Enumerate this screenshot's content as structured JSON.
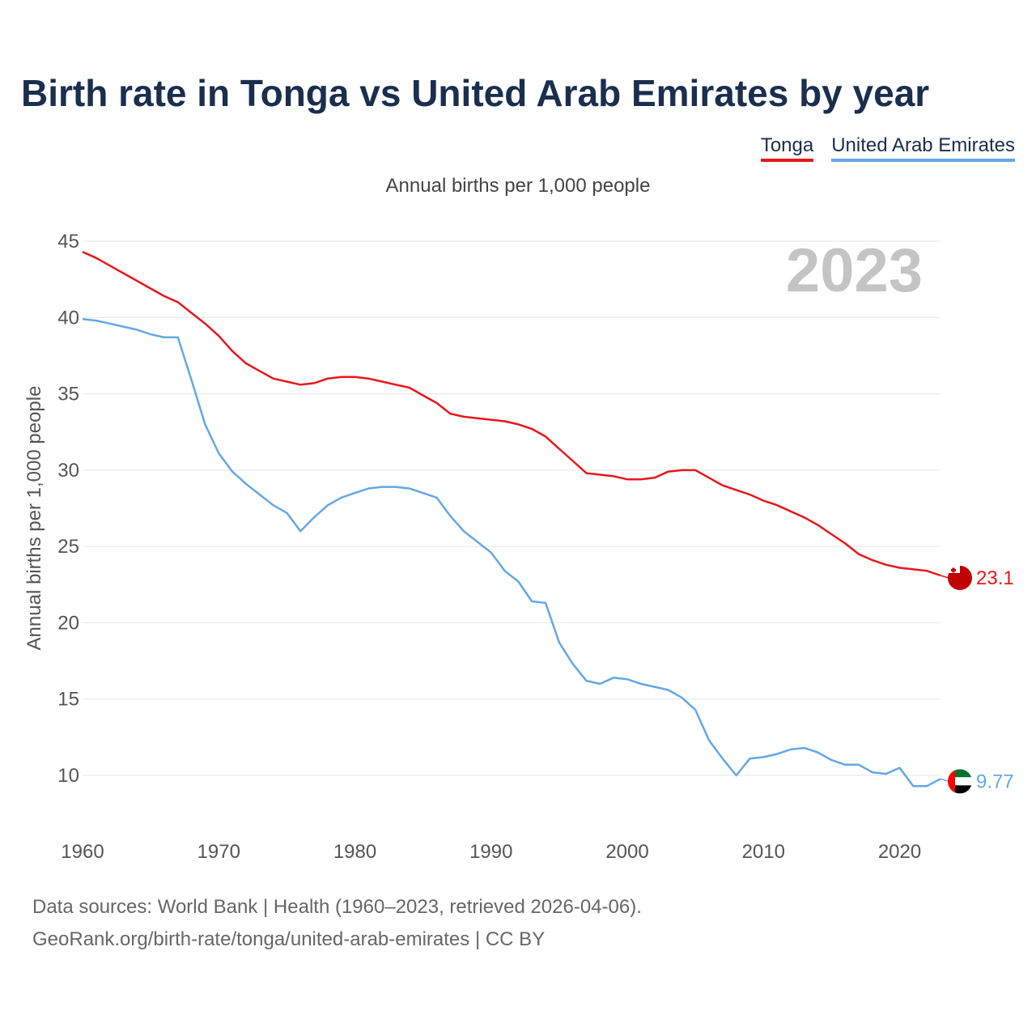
{
  "header": {
    "title": "Birth rate in Tonga vs United Arab Emirates by year",
    "subtitle": "Annual births per 1,000 people"
  },
  "legend": [
    {
      "label": "Tonga",
      "color": "#e8171b"
    },
    {
      "label": "United Arab Emirates",
      "color": "#64a7e6"
    }
  ],
  "footer": {
    "line1": "Data sources: World Bank | Health (1960–2023, retrieved 2026-04-06).",
    "line2": "GeoRank.org/birth-rate/tonga/united-arab-emirates | CC BY"
  },
  "chart_data": {
    "type": "line",
    "title": "Birth rate in Tonga vs United Arab Emirates by year",
    "ylabel": "Annual births per 1,000 people",
    "xlabel": "",
    "xlim": [
      1960,
      2023
    ],
    "ylim": [
      7,
      45
    ],
    "x_ticks": [
      1960,
      1970,
      1980,
      1990,
      2000,
      2010,
      2020
    ],
    "y_ticks": [
      10,
      15,
      20,
      25,
      30,
      35,
      40,
      45
    ],
    "grid": true,
    "year_watermark": "2023",
    "end_labels": {
      "Tonga": "23.1",
      "United Arab Emirates": "9.77"
    },
    "x": [
      1960,
      1961,
      1962,
      1963,
      1964,
      1965,
      1966,
      1967,
      1968,
      1969,
      1970,
      1971,
      1972,
      1973,
      1974,
      1975,
      1976,
      1977,
      1978,
      1979,
      1980,
      1981,
      1982,
      1983,
      1984,
      1985,
      1986,
      1987,
      1988,
      1989,
      1990,
      1991,
      1992,
      1993,
      1994,
      1995,
      1996,
      1997,
      1998,
      1999,
      2000,
      2001,
      2002,
      2003,
      2004,
      2005,
      2006,
      2007,
      2008,
      2009,
      2010,
      2011,
      2012,
      2013,
      2014,
      2015,
      2016,
      2017,
      2018,
      2019,
      2020,
      2021,
      2022,
      2023
    ],
    "series": [
      {
        "name": "Tonga",
        "color": "#e8171b",
        "values": [
          44.3,
          43.9,
          43.4,
          42.9,
          42.4,
          41.9,
          41.4,
          41.0,
          40.3,
          39.6,
          38.8,
          37.8,
          37.0,
          36.5,
          36.0,
          35.8,
          35.6,
          35.7,
          36.0,
          36.1,
          36.1,
          36.0,
          35.8,
          35.6,
          35.4,
          34.9,
          34.4,
          33.7,
          33.5,
          33.4,
          33.3,
          33.2,
          33.0,
          32.7,
          32.2,
          31.4,
          30.6,
          29.8,
          29.7,
          29.6,
          29.4,
          29.4,
          29.5,
          29.9,
          30.0,
          30.0,
          29.5,
          29.0,
          28.7,
          28.4,
          28.0,
          27.7,
          27.3,
          26.9,
          26.4,
          25.8,
          25.2,
          24.5,
          24.1,
          23.8,
          23.6,
          23.5,
          23.4,
          23.1
        ]
      },
      {
        "name": "United Arab Emirates",
        "color": "#64a7e6",
        "values": [
          39.9,
          39.8,
          39.6,
          39.4,
          39.2,
          38.9,
          38.7,
          38.7,
          35.9,
          33.0,
          31.1,
          29.9,
          29.1,
          28.4,
          27.7,
          27.2,
          26.0,
          26.9,
          27.7,
          28.2,
          28.5,
          28.8,
          28.9,
          28.9,
          28.8,
          28.5,
          28.2,
          27.0,
          26.0,
          25.3,
          24.6,
          23.4,
          22.7,
          21.4,
          21.3,
          18.7,
          17.3,
          16.2,
          16.0,
          16.4,
          16.3,
          16.0,
          15.8,
          15.6,
          15.1,
          14.3,
          12.3,
          11.1,
          10.0,
          11.1,
          11.2,
          11.4,
          11.7,
          11.8,
          11.5,
          11.0,
          10.7,
          10.7,
          10.2,
          10.1,
          10.5,
          9.3,
          9.3,
          9.77
        ]
      }
    ]
  }
}
